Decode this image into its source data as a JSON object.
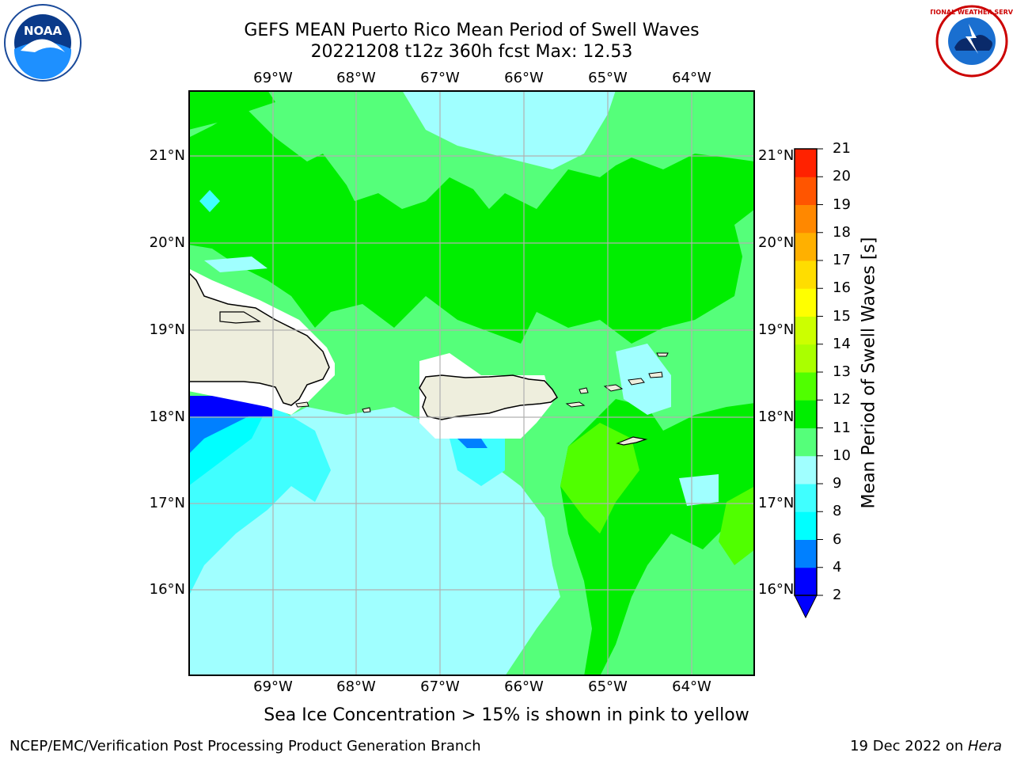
{
  "title": {
    "line1": "GEFS MEAN Puerto Rico Mean Period of Swell Waves",
    "line2": "20221208 t12z 360h fcst   Max: 12.53"
  },
  "logos": {
    "left": {
      "name": "noaa-logo",
      "text": "NOAA"
    },
    "right": {
      "name": "nws-logo",
      "text": "NATIONAL WEATHER SERVICE"
    }
  },
  "map": {
    "longitude_labels": [
      "69°W",
      "68°W",
      "67°W",
      "66°W",
      "65°W",
      "64°W"
    ],
    "latitude_labels": [
      "21°N",
      "20°N",
      "19°N",
      "18°N",
      "17°N",
      "16°N"
    ],
    "lon_range": [
      -70.0,
      -63.3
    ],
    "lat_range": [
      15.0,
      21.75
    ],
    "colors": {
      "land": "#eeeedd",
      "no_data": "#ffffff",
      "grid": "#b0b0b0",
      "coast": "#000000"
    }
  },
  "colorbar": {
    "title": "Mean Period of Swell Waves [s]",
    "levels": [
      "2",
      "4",
      "6",
      "8",
      "9",
      "10",
      "11",
      "12",
      "13",
      "14",
      "15",
      "16",
      "17",
      "18",
      "19",
      "20",
      "21"
    ],
    "colors": [
      "#0000ff",
      "#0080ff",
      "#00ffff",
      "#40ffff",
      "#a0ffff",
      "#55ff7a",
      "#00ee00",
      "#50ff00",
      "#aaff00",
      "#ccff00",
      "#ffff00",
      "#ffdd00",
      "#ffb000",
      "#ff8800",
      "#ff5500",
      "#ff2200",
      "#ff0000"
    ],
    "under_color": "#0000ff"
  },
  "note": "Sea Ice Concentration > 15% is shown in pink to yellow",
  "footer": {
    "left": "NCEP/EMC/Verification Post Processing Product Generation Branch",
    "right_date": "19 Dec 2022 on ",
    "right_host": "Hera"
  }
}
